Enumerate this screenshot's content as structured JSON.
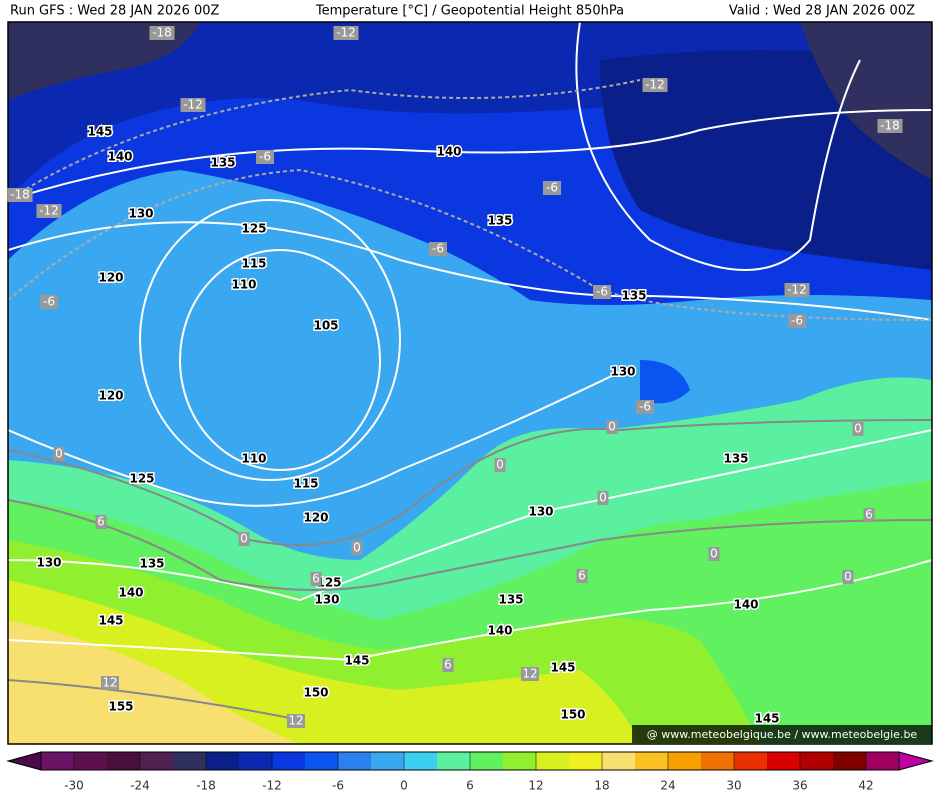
{
  "header": {
    "left": "Run GFS : Wed 28 JAN 2026 00Z",
    "center": "Temperature [°C] / Geopotential Height 850hPa",
    "right": "Valid : Wed 28 JAN 2026 00Z"
  },
  "height_labels": [
    "145",
    "140",
    "135",
    "140",
    "130",
    "125",
    "135",
    "115",
    "120",
    "110",
    "105",
    "135",
    "130",
    "120",
    "110",
    "135",
    "125",
    "115",
    "120",
    "130",
    "130",
    "135",
    "125",
    "140",
    "130",
    "135",
    "145",
    "140",
    "140",
    "145",
    "145",
    "150",
    "155",
    "150",
    "145"
  ],
  "temperature_labels": [
    "-18",
    "-12",
    "-12",
    "-12",
    "-18",
    "-6",
    "-6",
    "-18",
    "-12",
    "-6",
    "-6",
    "-12",
    "-6",
    "-6",
    "-6",
    "0",
    "0",
    "0",
    "0",
    "6",
    "0",
    "0",
    "0",
    "6",
    "0",
    "6",
    "0",
    "6",
    "12",
    "6",
    "12",
    "12"
  ],
  "watermark": "@ www.meteobelgique.be / www.meteobelgie.be",
  "colorbar": {
    "ticks": [
      -30,
      -24,
      -18,
      -12,
      -6,
      0,
      6,
      12,
      18,
      24,
      30,
      36,
      42
    ]
  }
}
